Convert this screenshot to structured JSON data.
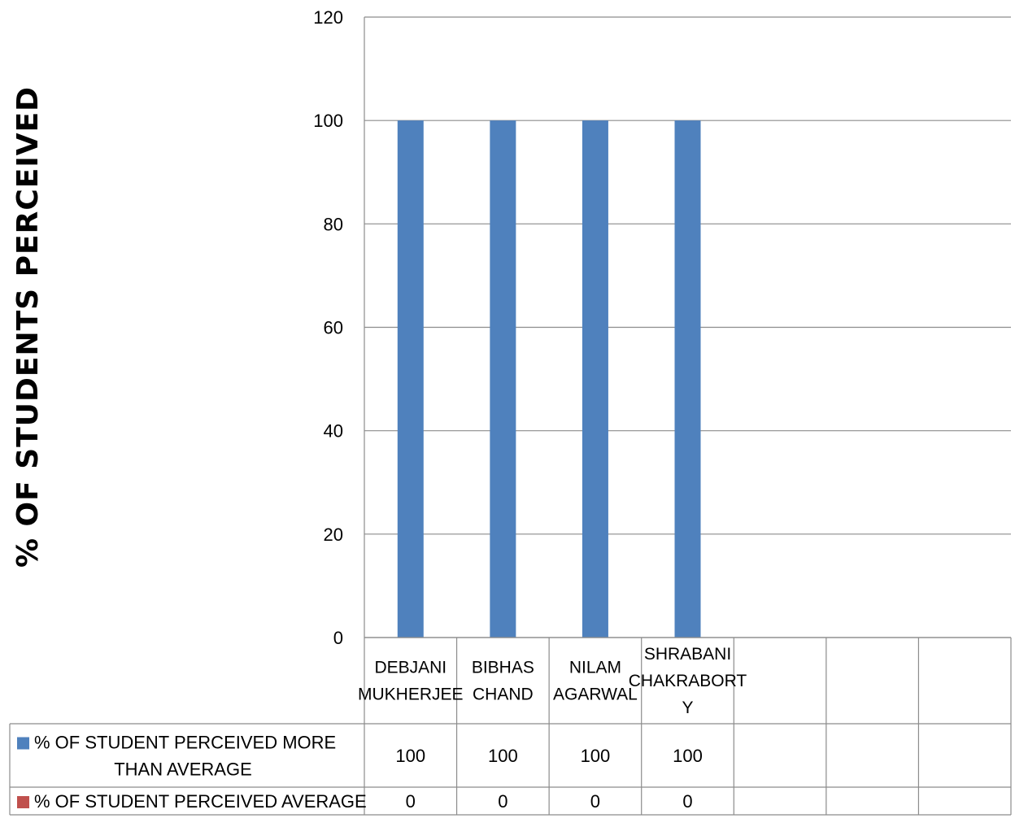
{
  "chart_data": {
    "type": "bar",
    "ylabel": "% OF  STUDENTS  PERCEIVED",
    "ylim": [
      0,
      120
    ],
    "yticks": [
      0,
      20,
      40,
      60,
      80,
      100,
      120
    ],
    "grid": true,
    "categories": [
      [
        "DEBJANI",
        "MUKHERJEE"
      ],
      [
        "BIBHAS",
        "CHAND"
      ],
      [
        "NILAM",
        "AGARWAL"
      ],
      [
        "SHRABANI",
        "CHAKRABORT",
        "Y"
      ],
      [],
      [],
      []
    ],
    "series": [
      {
        "name": "% OF STUDENT PERCEIVED MORE THAN AVERAGE",
        "name_lines": [
          "% OF STUDENT PERCEIVED MORE",
          "THAN AVERAGE"
        ],
        "color": "#4F81BD",
        "values": [
          100,
          100,
          100,
          100,
          null,
          null,
          null
        ]
      },
      {
        "name": "% OF STUDENT PERCEIVED AVERAGE",
        "name_lines": [
          "% OF STUDENT PERCEIVED AVERAGE"
        ],
        "color": "#C0504D",
        "values": [
          0,
          0,
          0,
          0,
          null,
          null,
          null
        ]
      }
    ],
    "legend_placement": "data-table"
  }
}
